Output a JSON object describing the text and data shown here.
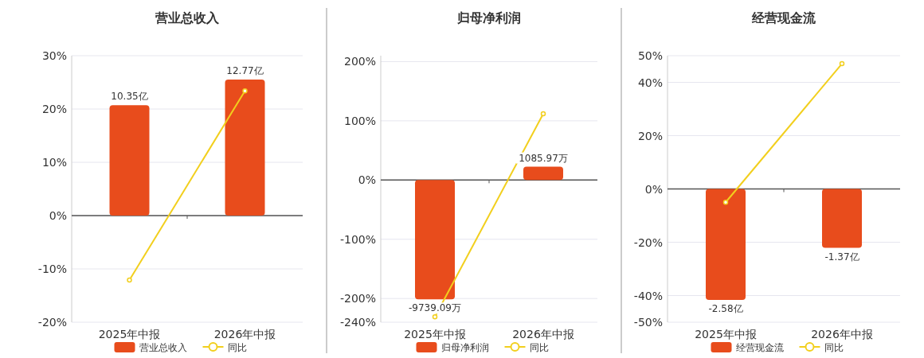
{
  "chart_data": [
    {
      "type": "bar",
      "title": "营业总收入",
      "categories": [
        "2025年中报",
        "2026年中报"
      ],
      "series": [
        {
          "name": "营业总收入",
          "color": "#e84c1c",
          "axis": "y2",
          "values": [
            10.35,
            12.77
          ],
          "value_labels": [
            "10.35亿",
            "12.77亿"
          ]
        },
        {
          "name": "同比",
          "type": "line",
          "color": "#f2cf1d",
          "values": [
            -12.1,
            23.4
          ]
        }
      ],
      "ylim": [
        -20,
        30
      ],
      "yticks": [
        {
          "value": 30,
          "label": "30%"
        },
        {
          "value": 20,
          "label": "20%"
        },
        {
          "value": 10,
          "label": "10%"
        },
        {
          "value": 0,
          "label": "0%"
        },
        {
          "value": -10,
          "label": "-10%"
        },
        {
          "value": -20,
          "label": "-20%"
        }
      ],
      "y2lim": [
        -10,
        15
      ],
      "grid": "y",
      "legend": "bottom",
      "marker": "circle"
    },
    {
      "type": "bar",
      "title": "归母净利润",
      "categories": [
        "2025年中报",
        "2026年中报"
      ],
      "series": [
        {
          "name": "归母净利润",
          "color": "#e84c1c",
          "axis": "y2",
          "values": [
            -9739.09,
            1085.97
          ],
          "value_labels": [
            "-9739.09万",
            "1085.97万"
          ]
        },
        {
          "name": "同比",
          "type": "line",
          "color": "#f2cf1d",
          "values": [
            -231,
            112
          ]
        }
      ],
      "ylim": [
        -240,
        210
      ],
      "yticks": [
        {
          "value": 200,
          "label": "200%"
        },
        {
          "value": 100,
          "label": "100%"
        },
        {
          "value": 0,
          "label": "0%"
        },
        {
          "value": -100,
          "label": "-100%"
        },
        {
          "value": -200,
          "label": "-200%"
        },
        {
          "value": -240,
          "label": "-240%"
        }
      ],
      "y2lim": [
        -11600,
        10150
      ],
      "grid": "y",
      "legend": "bottom",
      "marker": "circle"
    },
    {
      "type": "bar",
      "title": "经营现金流",
      "categories": [
        "2025年中报",
        "2026年中报"
      ],
      "series": [
        {
          "name": "经营现金流",
          "color": "#e84c1c",
          "axis": "y2",
          "values": [
            -2.58,
            -1.37
          ],
          "value_labels": [
            "-2.58亿",
            "-1.37亿"
          ]
        },
        {
          "name": "同比",
          "type": "line",
          "color": "#f2cf1d",
          "values": [
            -5,
            47
          ]
        }
      ],
      "ylim": [
        -50,
        50
      ],
      "yticks": [
        {
          "value": 50,
          "label": "50%"
        },
        {
          "value": 40,
          "label": "40%"
        },
        {
          "value": 20,
          "label": "20%"
        },
        {
          "value": 0,
          "label": "0%"
        },
        {
          "value": -20,
          "label": "-20%"
        },
        {
          "value": -40,
          "label": "-40%"
        },
        {
          "value": -50,
          "label": "-50%"
        }
      ],
      "y2lim": [
        -3.1,
        3.1
      ],
      "grid": "y",
      "legend": "bottom",
      "marker": "circle"
    }
  ]
}
